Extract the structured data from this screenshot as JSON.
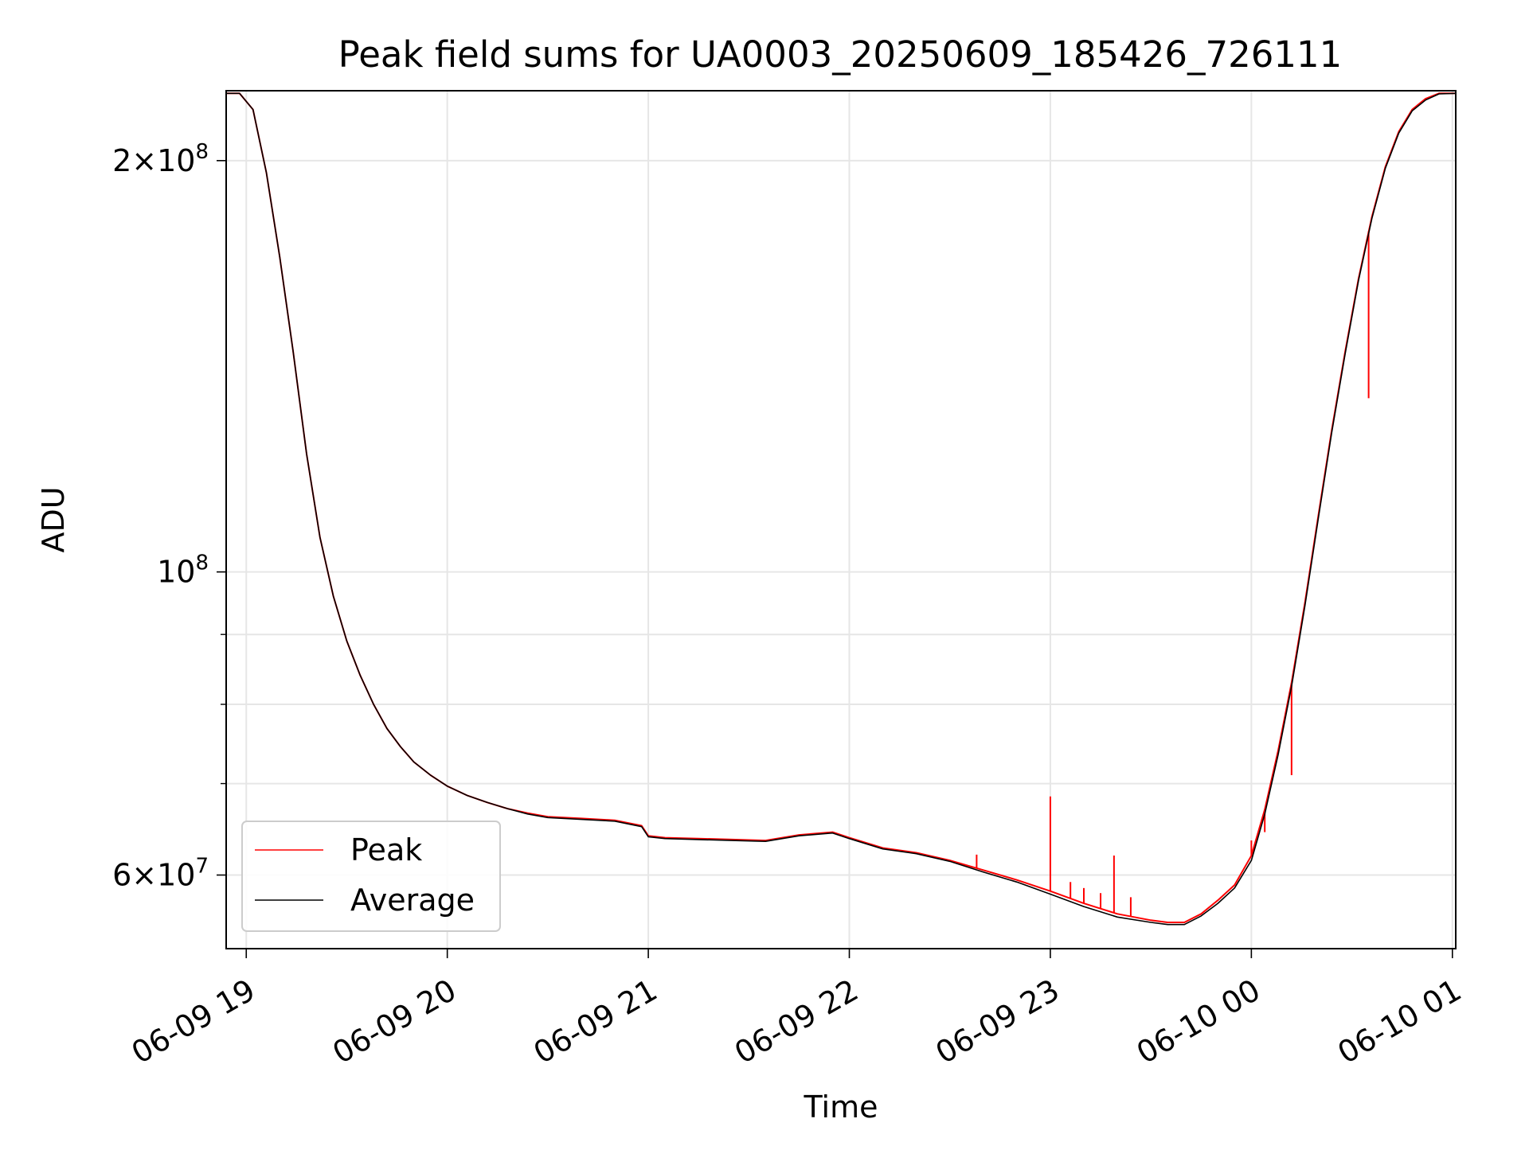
{
  "chart_data": {
    "type": "line",
    "title": "Peak field sums for UA0003_20250609_185426_726111",
    "xlabel": "Time",
    "ylabel": "ADU",
    "y_scale": "log",
    "ylim": [
      53000000,
      225000000
    ],
    "xlim": [
      "2025-06-09 18:54",
      "2025-06-10 01:01"
    ],
    "grid": true,
    "legend_position": "lower-left",
    "x_ticks": [
      {
        "value": "2025-06-09 19:00",
        "label": "06-09 19"
      },
      {
        "value": "2025-06-09 20:00",
        "label": "06-09 20"
      },
      {
        "value": "2025-06-09 21:00",
        "label": "06-09 21"
      },
      {
        "value": "2025-06-09 22:00",
        "label": "06-09 22"
      },
      {
        "value": "2025-06-09 23:00",
        "label": "06-09 23"
      },
      {
        "value": "2025-06-10 00:00",
        "label": "06-10 00"
      },
      {
        "value": "2025-06-10 01:00",
        "label": "06-10 01"
      }
    ],
    "y_ticks_major": [
      {
        "value": 100000000,
        "base": "10",
        "exp": "8"
      },
      {
        "value": 200000000,
        "mant": "2",
        "base": "10",
        "exp": "8"
      },
      {
        "value": 60000000,
        "mant": "6",
        "base": "10",
        "exp": "7"
      }
    ],
    "y_ticks_minor": [
      70000000,
      80000000,
      90000000
    ],
    "series": [
      {
        "name": "Peak",
        "color": "#ff0000",
        "x": [
          "2025-06-09 18:54",
          "2025-06-09 18:58",
          "2025-06-09 19:02",
          "2025-06-09 19:06",
          "2025-06-09 19:10",
          "2025-06-09 19:14",
          "2025-06-09 19:18",
          "2025-06-09 19:22",
          "2025-06-09 19:26",
          "2025-06-09 19:30",
          "2025-06-09 19:34",
          "2025-06-09 19:38",
          "2025-06-09 19:42",
          "2025-06-09 19:46",
          "2025-06-09 19:50",
          "2025-06-09 19:55",
          "2025-06-09 20:00",
          "2025-06-09 20:06",
          "2025-06-09 20:12",
          "2025-06-09 20:18",
          "2025-06-09 20:24",
          "2025-06-09 20:30",
          "2025-06-09 20:40",
          "2025-06-09 20:50",
          "2025-06-09 20:58",
          "2025-06-09 21:00",
          "2025-06-09 21:05",
          "2025-06-09 21:15",
          "2025-06-09 21:25",
          "2025-06-09 21:35",
          "2025-06-09 21:45",
          "2025-06-09 21:55",
          "2025-06-09 22:00",
          "2025-06-09 22:10",
          "2025-06-09 22:20",
          "2025-06-09 22:30",
          "2025-06-09 22:40",
          "2025-06-09 22:50",
          "2025-06-09 23:00",
          "2025-06-09 23:10",
          "2025-06-09 23:20",
          "2025-06-09 23:30",
          "2025-06-09 23:35",
          "2025-06-09 23:40",
          "2025-06-09 23:45",
          "2025-06-09 23:50",
          "2025-06-09 23:55",
          "2025-06-10 00:00",
          "2025-06-10 00:04",
          "2025-06-10 00:08",
          "2025-06-10 00:12",
          "2025-06-10 00:16",
          "2025-06-10 00:20",
          "2025-06-10 00:24",
          "2025-06-10 00:28",
          "2025-06-10 00:32",
          "2025-06-10 00:36",
          "2025-06-10 00:40",
          "2025-06-10 00:44",
          "2025-06-10 00:48",
          "2025-06-10 00:52",
          "2025-06-10 00:56",
          "2025-06-10 01:01"
        ],
        "values": [
          224000000,
          224000000,
          218000000,
          196000000,
          170000000,
          145000000,
          122000000,
          106000000,
          96000000,
          89000000,
          84000000,
          80000000,
          76800000,
          74500000,
          72600000,
          71000000,
          69700000,
          68600000,
          67800000,
          67100000,
          66600000,
          66200000,
          66000000,
          65800000,
          65200000,
          64100000,
          63900000,
          63800000,
          63700000,
          63600000,
          64200000,
          64500000,
          63900000,
          62800000,
          62300000,
          61500000,
          60500000,
          59500000,
          58400000,
          57200000,
          56200000,
          55600000,
          55400000,
          55400000,
          56200000,
          57500000,
          59000000,
          62000000,
          67000000,
          74000000,
          83000000,
          95000000,
          110000000,
          127000000,
          145000000,
          164000000,
          182000000,
          198000000,
          210000000,
          218000000,
          222000000,
          224000000,
          224000000
        ],
        "spikes": [
          {
            "x": "2025-06-09 22:38",
            "value": 62100000
          },
          {
            "x": "2025-06-09 23:00",
            "value": 68500000
          },
          {
            "x": "2025-06-09 23:06",
            "value": 59300000
          },
          {
            "x": "2025-06-09 23:10",
            "value": 58700000
          },
          {
            "x": "2025-06-09 23:15",
            "value": 58200000
          },
          {
            "x": "2025-06-09 23:19",
            "value": 62000000
          },
          {
            "x": "2025-06-09 23:24",
            "value": 57800000
          },
          {
            "x": "2025-06-10 00:00",
            "value": 63600000
          },
          {
            "x": "2025-06-10 00:04",
            "value": 64500000
          },
          {
            "x": "2025-06-10 00:12",
            "value": 71000000
          },
          {
            "x": "2025-06-10 00:35",
            "value": 134000000
          }
        ]
      },
      {
        "name": "Average",
        "color": "#000000",
        "x": [
          "2025-06-09 18:54",
          "2025-06-09 18:58",
          "2025-06-09 19:02",
          "2025-06-09 19:06",
          "2025-06-09 19:10",
          "2025-06-09 19:14",
          "2025-06-09 19:18",
          "2025-06-09 19:22",
          "2025-06-09 19:26",
          "2025-06-09 19:30",
          "2025-06-09 19:34",
          "2025-06-09 19:38",
          "2025-06-09 19:42",
          "2025-06-09 19:46",
          "2025-06-09 19:50",
          "2025-06-09 19:55",
          "2025-06-09 20:00",
          "2025-06-09 20:06",
          "2025-06-09 20:12",
          "2025-06-09 20:18",
          "2025-06-09 20:24",
          "2025-06-09 20:30",
          "2025-06-09 20:40",
          "2025-06-09 20:50",
          "2025-06-09 20:58",
          "2025-06-09 21:00",
          "2025-06-09 21:05",
          "2025-06-09 21:15",
          "2025-06-09 21:25",
          "2025-06-09 21:35",
          "2025-06-09 21:45",
          "2025-06-09 21:55",
          "2025-06-09 22:00",
          "2025-06-09 22:10",
          "2025-06-09 22:20",
          "2025-06-09 22:30",
          "2025-06-09 22:40",
          "2025-06-09 22:50",
          "2025-06-09 23:00",
          "2025-06-09 23:10",
          "2025-06-09 23:20",
          "2025-06-09 23:30",
          "2025-06-09 23:35",
          "2025-06-09 23:40",
          "2025-06-09 23:45",
          "2025-06-09 23:50",
          "2025-06-09 23:55",
          "2025-06-10 00:00",
          "2025-06-10 00:04",
          "2025-06-10 00:08",
          "2025-06-10 00:12",
          "2025-06-10 00:16",
          "2025-06-10 00:20",
          "2025-06-10 00:24",
          "2025-06-10 00:28",
          "2025-06-10 00:32",
          "2025-06-10 00:36",
          "2025-06-10 00:40",
          "2025-06-10 00:44",
          "2025-06-10 00:48",
          "2025-06-10 00:52",
          "2025-06-10 00:56",
          "2025-06-10 01:01"
        ],
        "values": [
          224000000,
          224000000,
          218000000,
          196000000,
          170000000,
          145000000,
          122000000,
          106000000,
          96000000,
          89000000,
          84000000,
          80000000,
          76800000,
          74500000,
          72600000,
          71000000,
          69700000,
          68600000,
          67800000,
          67100000,
          66500000,
          66100000,
          65900000,
          65700000,
          65100000,
          64000000,
          63800000,
          63700000,
          63600000,
          63500000,
          64100000,
          64400000,
          63800000,
          62700000,
          62200000,
          61400000,
          60300000,
          59300000,
          58100000,
          56900000,
          55900000,
          55400000,
          55200000,
          55200000,
          56000000,
          57200000,
          58700000,
          61500000,
          66500000,
          73500000,
          82500000,
          94500000,
          109500000,
          126500000,
          144500000,
          163500000,
          181500000,
          197500000,
          209500000,
          217500000,
          221500000,
          223800000,
          224000000
        ]
      }
    ]
  }
}
